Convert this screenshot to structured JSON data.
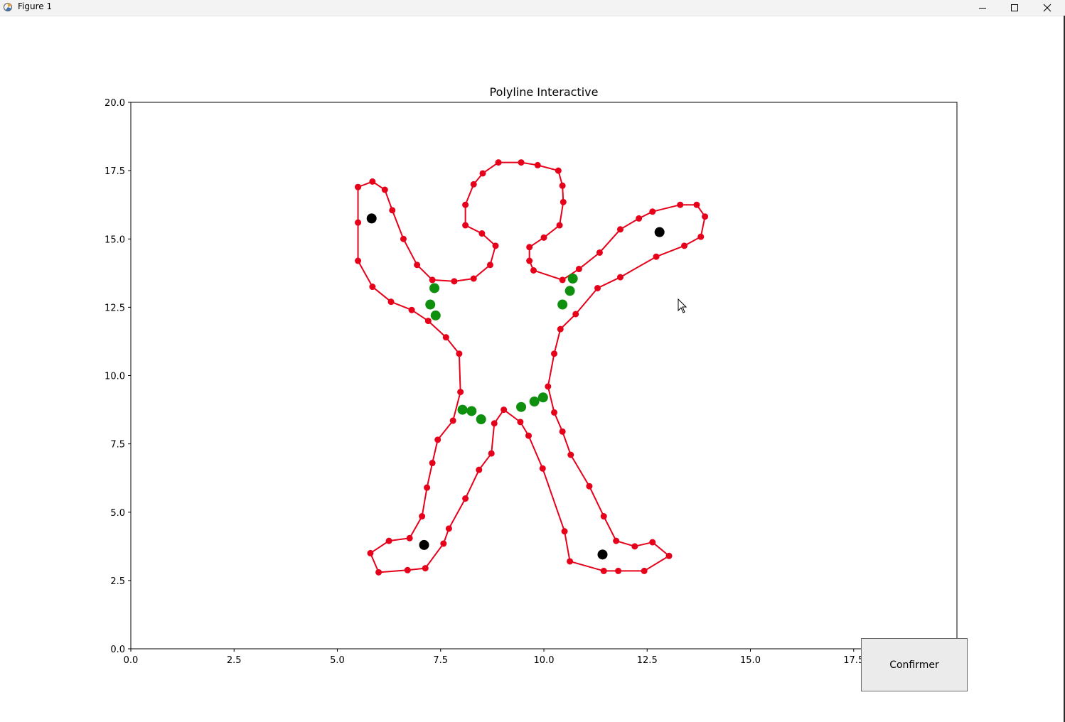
{
  "window": {
    "title": "Figure 1"
  },
  "button": {
    "confirm_label": "Confirmer"
  },
  "chart_data": {
    "type": "line",
    "title": "Polyline Interactive",
    "xlabel": "",
    "ylabel": "",
    "xlim": [
      0,
      20
    ],
    "ylim": [
      0,
      20
    ],
    "x_ticks": [
      "0.0",
      "2.5",
      "5.0",
      "7.5",
      "10.0",
      "12.5",
      "15.0",
      "17.5"
    ],
    "y_ticks": [
      "0.0",
      "2.5",
      "5.0",
      "7.5",
      "10.0",
      "12.5",
      "15.0",
      "17.5",
      "20.0"
    ],
    "grid": false,
    "colors": {
      "polyline": "#e6001a",
      "green_points": "#0e8f0e",
      "black_points": "#000000"
    },
    "series": [
      {
        "kind": "polyline",
        "x": [
          5.5,
          5.85,
          6.15,
          6.33,
          6.6,
          6.93,
          7.3,
          7.83,
          8.3,
          8.7,
          8.83,
          8.5,
          8.1,
          8.1,
          8.3,
          8.52,
          8.9,
          9.45,
          9.85,
          10.35,
          10.45,
          10.47,
          10.38,
          10.0,
          9.65,
          9.65,
          9.75,
          10.45,
          10.85,
          11.35,
          11.85,
          12.3,
          12.63,
          13.3,
          13.7,
          13.9,
          13.8,
          13.4,
          12.72,
          11.85,
          11.3,
          10.77,
          10.4,
          10.25,
          10.1,
          10.25,
          10.45,
          10.65,
          11.1,
          11.45,
          11.75,
          12.2,
          12.63,
          13.03,
          12.43,
          11.8,
          11.45,
          10.63,
          10.5,
          9.97,
          9.63,
          9.43,
          9.03,
          8.8,
          8.73,
          8.43,
          8.1,
          7.7,
          7.57,
          7.13,
          6.7,
          6.0,
          5.8,
          6.25,
          6.75,
          7.05,
          7.17,
          7.3,
          7.43,
          7.8,
          7.98,
          7.95,
          7.63,
          7.2,
          6.8,
          6.3,
          5.85,
          5.5,
          5.5,
          5.5
        ],
        "y": [
          16.9,
          17.1,
          16.8,
          16.05,
          15.0,
          14.05,
          13.5,
          13.45,
          13.55,
          14.05,
          14.75,
          15.2,
          15.5,
          16.25,
          17.0,
          17.4,
          17.8,
          17.8,
          17.7,
          17.5,
          16.95,
          16.35,
          15.5,
          15.05,
          14.7,
          14.2,
          13.85,
          13.5,
          13.9,
          14.5,
          15.35,
          15.75,
          16.0,
          16.25,
          16.25,
          15.82,
          15.08,
          14.75,
          14.35,
          13.6,
          13.2,
          12.25,
          11.7,
          10.8,
          9.6,
          8.65,
          7.95,
          7.1,
          5.95,
          4.85,
          3.95,
          3.75,
          3.9,
          3.4,
          2.85,
          2.85,
          2.85,
          3.2,
          4.3,
          6.6,
          7.8,
          8.3,
          8.75,
          8.25,
          7.15,
          6.55,
          5.5,
          4.4,
          3.85,
          2.95,
          2.88,
          2.8,
          3.5,
          3.95,
          4.05,
          4.85,
          5.9,
          6.8,
          7.65,
          8.35,
          9.4,
          10.8,
          11.4,
          12.0,
          12.4,
          12.7,
          13.25,
          14.2,
          15.6,
          16.9
        ]
      },
      {
        "kind": "points",
        "color": "green",
        "x": [
          7.35,
          7.25,
          7.38,
          10.7,
          10.63,
          10.45,
          8.03,
          8.25,
          8.48,
          9.45,
          9.77,
          9.98
        ],
        "y": [
          13.2,
          12.6,
          12.2,
          13.55,
          13.1,
          12.6,
          8.75,
          8.7,
          8.4,
          8.85,
          9.05,
          9.2
        ]
      },
      {
        "kind": "points",
        "color": "black",
        "x": [
          5.83,
          12.8,
          7.1,
          11.42
        ],
        "y": [
          15.75,
          15.25,
          3.8,
          3.45
        ]
      }
    ]
  }
}
